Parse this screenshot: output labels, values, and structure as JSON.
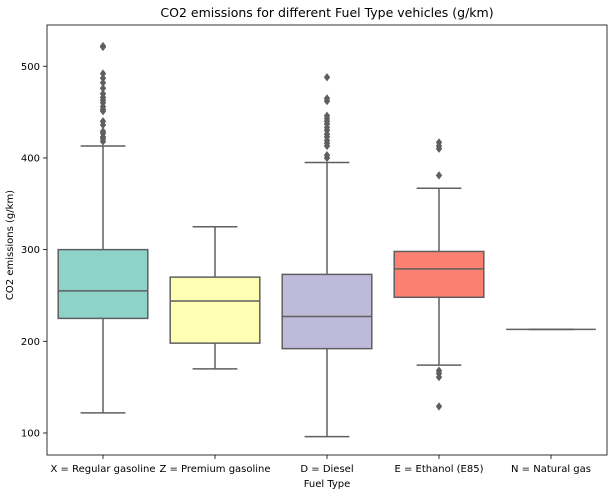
{
  "chart_data": {
    "type": "box",
    "title": "CO2 emissions for different Fuel Type vehicles (g/km)",
    "xlabel": "Fuel Type",
    "ylabel": "CO2 emissions (g/km)",
    "ylim": [
      76,
      545
    ],
    "yticks": [
      100,
      200,
      300,
      400,
      500
    ],
    "grid": false,
    "categories": [
      "X = Regular gasoline",
      "Z = Premium gasoline",
      "D = Diesel",
      "E = Ethanol (E85)",
      "N = Natural gas"
    ],
    "boxes": [
      {
        "category": "X = Regular gasoline",
        "color": "#8dd3c7",
        "whisker_low": 122,
        "q1": 225,
        "median": 255,
        "q3": 300,
        "whisker_high": 413,
        "outliers": [
          418,
          421,
          423,
          427,
          429,
          436,
          440,
          451,
          453,
          456,
          460,
          463,
          466,
          470,
          476,
          482,
          487,
          492,
          521,
          522
        ]
      },
      {
        "category": "Z = Premium gasoline",
        "color": "#ffffb3",
        "whisker_low": 170,
        "q1": 198,
        "median": 244,
        "q3": 270,
        "whisker_high": 325,
        "outliers": []
      },
      {
        "category": "D = Diesel",
        "color": "#bebada",
        "whisker_low": 96,
        "q1": 192,
        "median": 227,
        "q3": 273,
        "whisker_high": 395,
        "outliers": [
          400,
          403,
          413,
          416,
          419,
          423,
          426,
          430,
          433,
          437,
          440,
          443,
          446,
          462,
          465,
          488
        ]
      },
      {
        "category": "E = Ethanol (E85)",
        "color": "#fb8072",
        "whisker_low": 174,
        "q1": 248,
        "median": 279,
        "q3": 298,
        "whisker_high": 367,
        "outliers": [
          129,
          161,
          165,
          168,
          381,
          410,
          413,
          417
        ]
      },
      {
        "category": "N = Natural gas",
        "color": "#80b1d3",
        "whisker_low": 213,
        "q1": 213,
        "median": 213,
        "q3": 213,
        "whisker_high": 213,
        "outliers": []
      }
    ]
  }
}
